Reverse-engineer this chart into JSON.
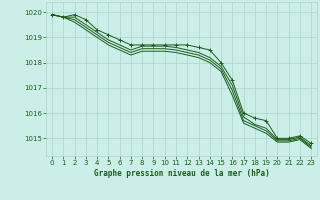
{
  "background_color": "#cceee8",
  "line_color": "#1a5c1a",
  "grid_color": "#aad4cc",
  "grid_color_minor": "#c8ece6",
  "xlabel": "Graphe pression niveau de la mer (hPa)",
  "xlabel_color": "#1a5c1a",
  "ylim": [
    1014.3,
    1020.4
  ],
  "xlim": [
    -0.5,
    23.5
  ],
  "yticks": [
    1015,
    1016,
    1017,
    1018,
    1019,
    1020
  ],
  "xticks": [
    0,
    1,
    2,
    3,
    4,
    5,
    6,
    7,
    8,
    9,
    10,
    11,
    12,
    13,
    14,
    15,
    16,
    17,
    18,
    19,
    20,
    21,
    22,
    23
  ],
  "series": [
    [
      1019.9,
      1019.8,
      1019.9,
      1019.7,
      1019.3,
      1019.1,
      1018.9,
      1018.7,
      1018.7,
      1018.7,
      1018.7,
      1018.7,
      1018.7,
      1018.6,
      1018.5,
      1018.0,
      1017.3,
      1016.0,
      1015.8,
      1015.7,
      1015.0,
      1015.0,
      1015.1,
      1014.8
    ],
    [
      1019.9,
      1019.8,
      1019.8,
      1019.5,
      1019.2,
      1018.9,
      1018.7,
      1018.5,
      1018.65,
      1018.65,
      1018.65,
      1018.6,
      1018.5,
      1018.4,
      1018.2,
      1017.85,
      1017.1,
      1015.85,
      1015.55,
      1015.4,
      1014.95,
      1014.95,
      1015.05,
      1014.7
    ],
    [
      1019.9,
      1019.8,
      1019.7,
      1019.4,
      1019.1,
      1018.8,
      1018.6,
      1018.4,
      1018.55,
      1018.55,
      1018.55,
      1018.5,
      1018.4,
      1018.3,
      1018.1,
      1017.75,
      1016.9,
      1015.7,
      1015.5,
      1015.3,
      1014.9,
      1014.9,
      1015.0,
      1014.65
    ],
    [
      1019.9,
      1019.8,
      1019.6,
      1019.3,
      1019.0,
      1018.7,
      1018.5,
      1018.3,
      1018.45,
      1018.45,
      1018.45,
      1018.4,
      1018.3,
      1018.2,
      1018.0,
      1017.65,
      1016.7,
      1015.6,
      1015.4,
      1015.2,
      1014.85,
      1014.85,
      1014.95,
      1014.6
    ]
  ]
}
